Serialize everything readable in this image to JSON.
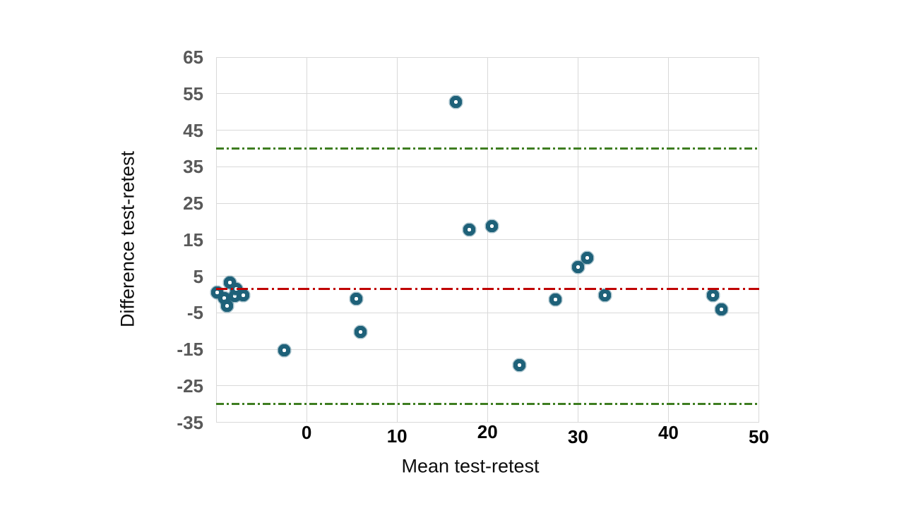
{
  "chart_data": {
    "type": "scatter",
    "title": "",
    "xlabel": "Mean test-retest",
    "ylabel": "Difference  test-retest",
    "xlim": [
      -10,
      50
    ],
    "ylim": [
      -35,
      65
    ],
    "x_ticks": [
      0,
      10,
      20,
      30,
      40,
      50
    ],
    "y_ticks": [
      65,
      55,
      45,
      35,
      25,
      15,
      5,
      -5,
      -15,
      -25,
      -35
    ],
    "grid": true,
    "legend": "none",
    "series": [
      {
        "marker": "donut-circle",
        "color": "#1e6179",
        "points": [
          [
            -9.9,
            0.5
          ],
          [
            -9.1,
            -1.0
          ],
          [
            -8.8,
            -3.2
          ],
          [
            -8.5,
            3.2
          ],
          [
            -7.9,
            -0.5
          ],
          [
            -7.8,
            1.6
          ],
          [
            -7.0,
            -0.3
          ],
          [
            -2.5,
            -15.2
          ],
          [
            5.5,
            -1.2
          ],
          [
            6.0,
            -10.2
          ],
          [
            16.5,
            52.8
          ],
          [
            18.0,
            17.7
          ],
          [
            20.5,
            18.8
          ],
          [
            23.5,
            -19.4
          ],
          [
            27.5,
            -1.3
          ],
          [
            30.0,
            7.6
          ],
          [
            31.0,
            10.0
          ],
          [
            33.0,
            -0.2
          ],
          [
            44.9,
            -0.3
          ],
          [
            45.9,
            -4.0
          ]
        ]
      }
    ],
    "reference_lines": [
      {
        "y": 1.6,
        "color": "#c00000",
        "style": "dash-dot",
        "dash": [
          16,
          5,
          3,
          5
        ]
      },
      {
        "y": 40.0,
        "color": "#3e7d20",
        "style": "dash-dot",
        "dash": [
          11,
          4,
          3,
          4
        ]
      },
      {
        "y": -30.0,
        "color": "#3e7d20",
        "style": "dash-dot",
        "dash": [
          11,
          4,
          3,
          4
        ]
      }
    ],
    "colors": {
      "grid": "#d9d9d9",
      "y_tick_label": "#595959",
      "x_tick_label": "#000000",
      "axis_title": "#0d0d0d",
      "background": "#ffffff"
    }
  }
}
